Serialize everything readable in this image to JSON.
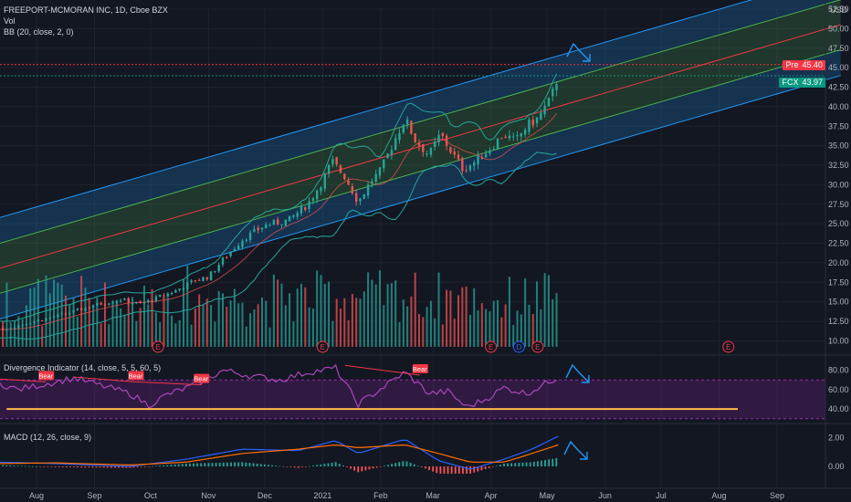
{
  "header": {
    "symbol_line": "FREEPORT-MCMORAN INC, 1D, Cboe BZX",
    "vol_label": "Vol",
    "bb_label": "BB (20, close, 2, 0)",
    "currency": "USD"
  },
  "price_tags": {
    "pre": {
      "label": "Pre",
      "value": "45.40",
      "color": "#f23645"
    },
    "last": {
      "label": "FCX",
      "value": "43.97",
      "color": "#089981"
    }
  },
  "panes": {
    "divergence_label": "Divergence Indicator (14, close, 5, 5, 60, 5)",
    "macd_label": "MACD (12, 26, close, 9)"
  },
  "axes": {
    "price_ticks": [
      "52.50",
      "50.00",
      "47.50",
      "45.00",
      "42.50",
      "40.00",
      "37.50",
      "35.00",
      "32.50",
      "30.00",
      "27.50",
      "25.00",
      "22.50",
      "20.00",
      "17.50",
      "15.00",
      "12.50",
      "10.00"
    ],
    "osc_ticks": [
      "80.00",
      "60.00",
      "40.00"
    ],
    "macd_ticks": [
      "2.00",
      "0.00"
    ],
    "months": [
      "Aug",
      "Sep",
      "Oct",
      "Nov",
      "Dec",
      "2021",
      "Feb",
      "Mar",
      "Apr",
      "May",
      "Jun",
      "Jul",
      "Aug",
      "Sep"
    ]
  },
  "events": {
    "earnings": "E",
    "dividend": "D"
  },
  "bear_label": "Bear",
  "chart_data": {
    "type": "candlestick",
    "symbol": "FCX",
    "interval": "1D",
    "price_axis": {
      "min": 9,
      "max": 52.5,
      "scale": "linear"
    },
    "month_starts": [
      {
        "label": "Aug",
        "day": 0
      },
      {
        "label": "Sep",
        "day": 31
      },
      {
        "label": "Oct",
        "day": 61
      },
      {
        "label": "Nov",
        "day": 92
      },
      {
        "label": "Dec",
        "day": 122
      },
      {
        "label": "2021",
        "day": 153
      },
      {
        "label": "Feb",
        "day": 184
      },
      {
        "label": "Mar",
        "day": 212
      },
      {
        "label": "Apr",
        "day": 243
      },
      {
        "label": "May",
        "day": 273
      },
      {
        "label": "Jun",
        "day": 304
      },
      {
        "label": "Jul",
        "day": 334
      },
      {
        "label": "Aug",
        "day": 365
      },
      {
        "label": "Sep",
        "day": 396
      }
    ],
    "price_path": [
      {
        "day": -20,
        "close": 11.4
      },
      {
        "day": -10,
        "close": 12.0
      },
      {
        "day": 0,
        "close": 12.6
      },
      {
        "day": 15,
        "close": 13.4
      },
      {
        "day": 31,
        "close": 14.6
      },
      {
        "day": 45,
        "close": 15.3
      },
      {
        "day": 55,
        "close": 14.7
      },
      {
        "day": 61,
        "close": 15.2
      },
      {
        "day": 75,
        "close": 16.5
      },
      {
        "day": 85,
        "close": 17.8
      },
      {
        "day": 92,
        "close": 18.2
      },
      {
        "day": 100,
        "close": 20.5
      },
      {
        "day": 110,
        "close": 23.0
      },
      {
        "day": 122,
        "close": 24.8
      },
      {
        "day": 135,
        "close": 25.5
      },
      {
        "day": 145,
        "close": 27.5
      },
      {
        "day": 153,
        "close": 30.5
      },
      {
        "day": 158,
        "close": 33.0
      },
      {
        "day": 165,
        "close": 31.0
      },
      {
        "day": 172,
        "close": 27.8
      },
      {
        "day": 179,
        "close": 30.5
      },
      {
        "day": 184,
        "close": 31.8
      },
      {
        "day": 192,
        "close": 36.0
      },
      {
        "day": 197,
        "close": 38.5
      },
      {
        "day": 203,
        "close": 35.5
      },
      {
        "day": 210,
        "close": 33.8
      },
      {
        "day": 216,
        "close": 36.5
      },
      {
        "day": 221,
        "close": 34.5
      },
      {
        "day": 228,
        "close": 32.0
      },
      {
        "day": 235,
        "close": 33.0
      },
      {
        "day": 243,
        "close": 34.8
      },
      {
        "day": 250,
        "close": 36.5
      },
      {
        "day": 256,
        "close": 35.5
      },
      {
        "day": 262,
        "close": 37.5
      },
      {
        "day": 268,
        "close": 38.5
      },
      {
        "day": 275,
        "close": 41.0
      },
      {
        "day": 279,
        "close": 43.97
      }
    ],
    "channel": {
      "start": {
        "day": -60,
        "price": 16.5
      },
      "end": {
        "day": 430,
        "price": 50.5
      },
      "upper_offset": 6.5,
      "inner_offset": 3.2,
      "lower_offset": -6.5
    },
    "last_price": 43.97,
    "premarket_price": 45.4,
    "earnings_days": [
      -32,
      65,
      153,
      243,
      268,
      370
    ],
    "dividend_days": [
      258
    ],
    "volume": {
      "max_relative": 1.0
    },
    "divergence": {
      "axis": {
        "min": 27,
        "max": 90
      },
      "band": {
        "upper": 70,
        "lower": 30
      },
      "support_level": 40,
      "support_from_day": -16,
      "support_to_day": 375,
      "bear_points": [
        {
          "from_day": -60,
          "from": 75,
          "to_day": -28,
          "to": 72
        },
        {
          "from_day": -28,
          "from": 72,
          "to_day": 5,
          "to": 68
        },
        {
          "from_day": 20,
          "from": 73,
          "to_day": 53,
          "to": 68
        },
        {
          "from_day": 53,
          "from": 68,
          "to_day": 88,
          "to": 65
        },
        {
          "from_day": 165,
          "from": 85,
          "to_day": 205,
          "to": 75
        }
      ],
      "path": [
        {
          "day": -60,
          "v": 64
        },
        {
          "day": -40,
          "v": 72
        },
        {
          "day": -25,
          "v": 70
        },
        {
          "day": -10,
          "v": 60
        },
        {
          "day": 5,
          "v": 66
        },
        {
          "day": 20,
          "v": 72
        },
        {
          "day": 35,
          "v": 64
        },
        {
          "day": 50,
          "v": 56
        },
        {
          "day": 60,
          "v": 44
        },
        {
          "day": 70,
          "v": 55
        },
        {
          "day": 85,
          "v": 65
        },
        {
          "day": 100,
          "v": 80
        },
        {
          "day": 115,
          "v": 74
        },
        {
          "day": 130,
          "v": 70
        },
        {
          "day": 145,
          "v": 78
        },
        {
          "day": 160,
          "v": 82
        },
        {
          "day": 172,
          "v": 45
        },
        {
          "day": 185,
          "v": 62
        },
        {
          "day": 197,
          "v": 78
        },
        {
          "day": 210,
          "v": 56
        },
        {
          "day": 220,
          "v": 58
        },
        {
          "day": 230,
          "v": 42
        },
        {
          "day": 240,
          "v": 50
        },
        {
          "day": 250,
          "v": 62
        },
        {
          "day": 262,
          "v": 56
        },
        {
          "day": 272,
          "v": 66
        },
        {
          "day": 279,
          "v": 73
        }
      ]
    },
    "macd": {
      "axis": {
        "min": -1.2,
        "max": 2.6
      },
      "path": [
        {
          "day": -60,
          "m": 0.1,
          "s": 0.1
        },
        {
          "day": -20,
          "m": 0.3,
          "s": 0.2
        },
        {
          "day": 10,
          "m": 0.2,
          "s": 0.25
        },
        {
          "day": 50,
          "m": 0.0,
          "s": 0.1
        },
        {
          "day": 80,
          "m": 0.5,
          "s": 0.3
        },
        {
          "day": 110,
          "m": 1.2,
          "s": 0.9
        },
        {
          "day": 140,
          "m": 1.1,
          "s": 1.2
        },
        {
          "day": 160,
          "m": 1.8,
          "s": 1.5
        },
        {
          "day": 172,
          "m": 0.9,
          "s": 1.3
        },
        {
          "day": 197,
          "m": 1.9,
          "s": 1.5
        },
        {
          "day": 215,
          "m": 0.4,
          "s": 0.9
        },
        {
          "day": 232,
          "m": -0.2,
          "s": 0.3
        },
        {
          "day": 250,
          "m": 0.5,
          "s": 0.3
        },
        {
          "day": 265,
          "m": 1.2,
          "s": 0.9
        },
        {
          "day": 279,
          "m": 2.1,
          "s": 1.5
        }
      ]
    }
  }
}
